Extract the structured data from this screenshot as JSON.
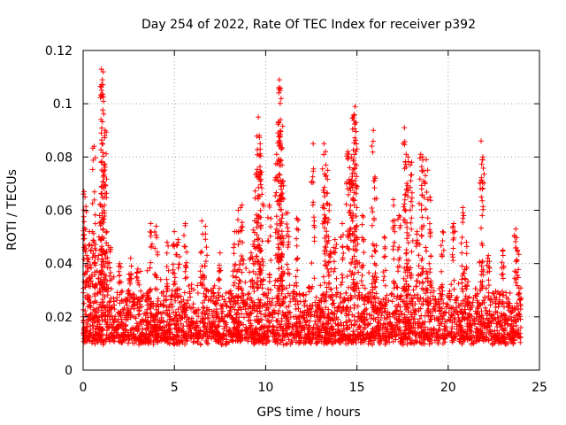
{
  "chart_data": {
    "type": "scatter",
    "title": "Day 254 of 2022, Rate Of TEC Index for receiver p392",
    "xlabel": "GPS time / hours",
    "ylabel": "ROTI / TECUs",
    "xlim": [
      0,
      25
    ],
    "ylim": [
      0,
      0.12
    ],
    "xticks": [
      0,
      5,
      10,
      15,
      20,
      25
    ],
    "yticks": [
      0,
      0.02,
      0.04,
      0.06,
      0.08,
      0.1,
      0.12
    ],
    "xtick_labels": [
      "0",
      "5",
      "10",
      "15",
      "20",
      "25"
    ],
    "ytick_labels": [
      "0",
      "0.02",
      "0.04",
      "0.06",
      "0.08",
      "0.1",
      "0.12"
    ],
    "grid": true,
    "legend": "none",
    "marker": "+",
    "color": "#ff0000",
    "time_span_hours": [
      0,
      24
    ],
    "baseline_range": [
      0.005,
      0.03
    ],
    "points": [
      [
        0.05,
        0.067
      ],
      [
        0.1,
        0.065
      ],
      [
        0.2,
        0.043
      ],
      [
        0.35,
        0.052
      ],
      [
        0.5,
        0.052
      ],
      [
        0.6,
        0.084
      ],
      [
        0.7,
        0.045
      ],
      [
        0.9,
        0.058
      ],
      [
        1.0,
        0.069
      ],
      [
        1.0,
        0.113
      ],
      [
        1.05,
        0.109
      ],
      [
        1.1,
        0.112
      ],
      [
        1.15,
        0.077
      ],
      [
        1.2,
        0.09
      ],
      [
        1.3,
        0.052
      ],
      [
        1.5,
        0.046
      ],
      [
        2.0,
        0.04
      ],
      [
        2.6,
        0.042
      ],
      [
        3.0,
        0.038
      ],
      [
        3.7,
        0.055
      ],
      [
        4.0,
        0.054
      ],
      [
        4.6,
        0.048
      ],
      [
        5.0,
        0.052
      ],
      [
        5.2,
        0.049
      ],
      [
        5.6,
        0.055
      ],
      [
        6.5,
        0.056
      ],
      [
        6.7,
        0.054
      ],
      [
        7.5,
        0.044
      ],
      [
        8.3,
        0.052
      ],
      [
        8.5,
        0.06
      ],
      [
        8.7,
        0.062
      ],
      [
        9.2,
        0.044
      ],
      [
        9.4,
        0.056
      ],
      [
        9.5,
        0.074
      ],
      [
        9.6,
        0.095
      ],
      [
        9.65,
        0.088
      ],
      [
        9.7,
        0.085
      ],
      [
        9.8,
        0.066
      ],
      [
        10.2,
        0.062
      ],
      [
        10.6,
        0.081
      ],
      [
        10.7,
        0.093
      ],
      [
        10.75,
        0.109
      ],
      [
        10.8,
        0.105
      ],
      [
        10.85,
        0.102
      ],
      [
        10.9,
        0.077
      ],
      [
        10.95,
        0.071
      ],
      [
        11.2,
        0.059
      ],
      [
        11.7,
        0.057
      ],
      [
        12.6,
        0.085
      ],
      [
        13.2,
        0.085
      ],
      [
        13.3,
        0.077
      ],
      [
        13.4,
        0.075
      ],
      [
        13.5,
        0.062
      ],
      [
        13.8,
        0.049
      ],
      [
        14.2,
        0.055
      ],
      [
        14.5,
        0.082
      ],
      [
        14.6,
        0.076
      ],
      [
        14.7,
        0.08
      ],
      [
        14.8,
        0.095
      ],
      [
        14.85,
        0.096
      ],
      [
        14.9,
        0.099
      ],
      [
        15.0,
        0.083
      ],
      [
        15.3,
        0.058
      ],
      [
        15.9,
        0.09
      ],
      [
        16.0,
        0.072
      ],
      [
        16.5,
        0.05
      ],
      [
        17.0,
        0.064
      ],
      [
        17.3,
        0.058
      ],
      [
        17.6,
        0.091
      ],
      [
        17.7,
        0.081
      ],
      [
        17.8,
        0.08
      ],
      [
        18.0,
        0.078
      ],
      [
        18.3,
        0.052
      ],
      [
        18.5,
        0.081
      ],
      [
        18.6,
        0.08
      ],
      [
        18.8,
        0.079
      ],
      [
        19.0,
        0.065
      ],
      [
        19.7,
        0.052
      ],
      [
        20.3,
        0.055
      ],
      [
        20.8,
        0.061
      ],
      [
        21.0,
        0.048
      ],
      [
        21.8,
        0.086
      ],
      [
        21.9,
        0.08
      ],
      [
        22.2,
        0.043
      ],
      [
        23.0,
        0.045
      ],
      [
        23.7,
        0.053
      ],
      [
        23.8,
        0.045
      ]
    ]
  }
}
